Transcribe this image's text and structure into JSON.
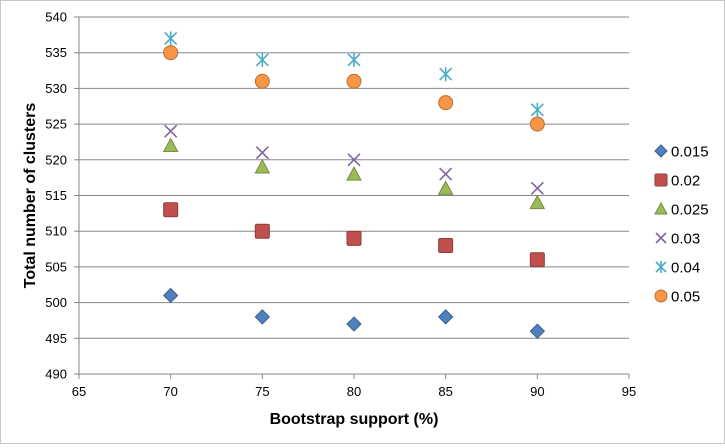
{
  "chart_data": {
    "type": "scatter",
    "title": "",
    "xlabel": "Bootstrap support (%)",
    "ylabel": "Total number of clusters",
    "xlim": [
      65,
      95
    ],
    "ylim": [
      490,
      540
    ],
    "x_ticks": [
      "65",
      "70",
      "75",
      "80",
      "85",
      "90",
      "95"
    ],
    "y_ticks": [
      "490",
      "495",
      "500",
      "505",
      "510",
      "515",
      "520",
      "525",
      "530",
      "535",
      "540"
    ],
    "grid": "horizontal",
    "legend_position": "right",
    "x": [
      70,
      75,
      80,
      85,
      90
    ],
    "series": [
      {
        "name": "0.015",
        "marker": "diamond",
        "color": "#4f81bd",
        "values": [
          501,
          498,
          497,
          498,
          496
        ]
      },
      {
        "name": "0.02",
        "marker": "square",
        "color": "#c0504d",
        "values": [
          513,
          510,
          509,
          508,
          506
        ]
      },
      {
        "name": "0.025",
        "marker": "triangle",
        "color": "#9bbb59",
        "values": [
          522,
          519,
          518,
          516,
          514
        ]
      },
      {
        "name": "0.03",
        "marker": "x",
        "color": "#8064a2",
        "values": [
          524,
          521,
          520,
          518,
          516
        ]
      },
      {
        "name": "0.04",
        "marker": "star",
        "color": "#4bacc6",
        "values": [
          537,
          534,
          534,
          532,
          527
        ]
      },
      {
        "name": "0.05",
        "marker": "circle",
        "color": "#f79646",
        "values": [
          535,
          531,
          531,
          528,
          525
        ]
      }
    ]
  }
}
